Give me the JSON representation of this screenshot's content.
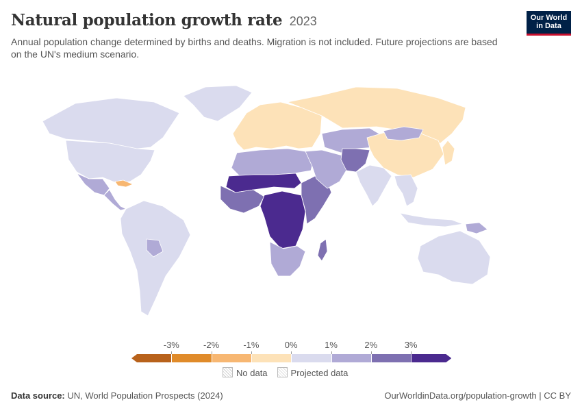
{
  "header": {
    "title": "Natural population growth rate",
    "year": "2023",
    "subtitle": "Annual population change determined by births and deaths. Migration is not included. Future projections are based on the UN's medium scenario.",
    "logo_line1": "Our World",
    "logo_line2": "in Data"
  },
  "legend": {
    "tick_labels": [
      "-3%",
      "-2%",
      "-1%",
      "0%",
      "1%",
      "2%",
      "3%"
    ],
    "bins": [
      {
        "color": "#b8621b"
      },
      {
        "color": "#e08b2a"
      },
      {
        "color": "#f7b772"
      },
      {
        "color": "#fde2b8"
      },
      {
        "color": "#dadbee"
      },
      {
        "color": "#b0aad6"
      },
      {
        "color": "#7e70b1"
      },
      {
        "color": "#4b2a8f"
      }
    ],
    "no_data_label": "No data",
    "projected_label": "Projected data"
  },
  "footer": {
    "source_label": "Data source:",
    "source_text": "UN, World Population Prospects (2024)",
    "url_text": "OurWorldinData.org/population-growth | CC BY"
  },
  "map": {
    "regions": [
      {
        "name": "Greenland",
        "bin": 4
      },
      {
        "name": "Canada",
        "bin": 4
      },
      {
        "name": "United States",
        "bin": 4
      },
      {
        "name": "Mexico",
        "bin": 5
      },
      {
        "name": "Central America",
        "bin": 5
      },
      {
        "name": "Cuba",
        "bin": 2
      },
      {
        "name": "South America",
        "bin": 4
      },
      {
        "name": "Bolivia",
        "bin": 5
      },
      {
        "name": "Europe",
        "bin": 3
      },
      {
        "name": "Russia",
        "bin": 3
      },
      {
        "name": "North Africa",
        "bin": 5
      },
      {
        "name": "Sahel",
        "bin": 7
      },
      {
        "name": "West Africa",
        "bin": 6
      },
      {
        "name": "Central Africa",
        "bin": 7
      },
      {
        "name": "East Africa",
        "bin": 6
      },
      {
        "name": "Southern Africa",
        "bin": 5
      },
      {
        "name": "Madagascar",
        "bin": 6
      },
      {
        "name": "Middle East",
        "bin": 5
      },
      {
        "name": "Central Asia",
        "bin": 5
      },
      {
        "name": "Afghanistan and Pakistan",
        "bin": 6
      },
      {
        "name": "India",
        "bin": 4
      },
      {
        "name": "China",
        "bin": 3
      },
      {
        "name": "Mongolia",
        "bin": 5
      },
      {
        "name": "Southeast Asia",
        "bin": 4
      },
      {
        "name": "Indonesia",
        "bin": 4
      },
      {
        "name": "Papua New Guinea",
        "bin": 5
      },
      {
        "name": "Australia",
        "bin": 4
      },
      {
        "name": "Japan and Korea",
        "bin": 3
      }
    ]
  }
}
